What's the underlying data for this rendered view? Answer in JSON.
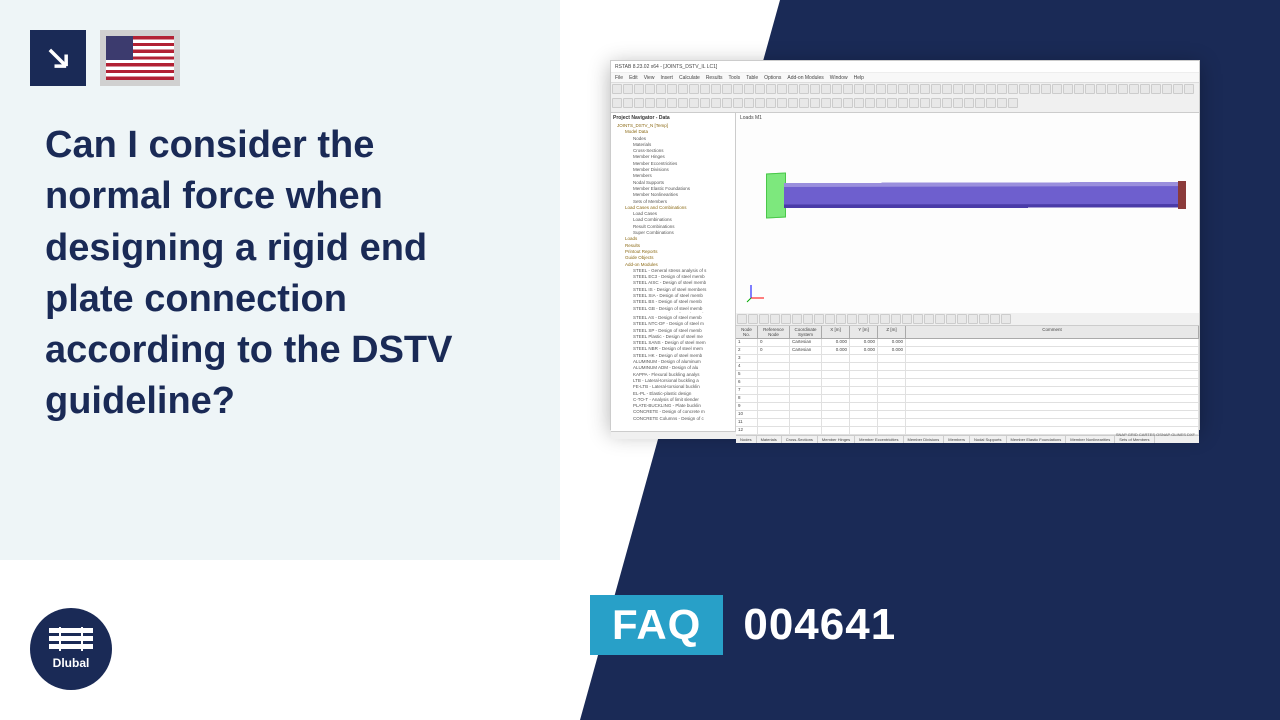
{
  "layout": {
    "canvas_bg": "#ffffff",
    "navy_color": "#1a2a56",
    "left_panel_bg": "#eef5f7",
    "accent_cyan": "#28a0c8"
  },
  "header": {
    "flag": "us"
  },
  "question": "Can I consider the normal force when designing a rigid end plate connection according to the DSTV guideline?",
  "faq": {
    "label": "FAQ",
    "number": "004641"
  },
  "logo": {
    "text": "Dlubal"
  },
  "screenshot": {
    "title": "RSTAB 8.23.02 x64 - [JOINTS_DSTV_IL LC1]",
    "menus": [
      "File",
      "Edit",
      "View",
      "Insert",
      "Calculate",
      "Results",
      "Tools",
      "Table",
      "Options",
      "Add-on Modules",
      "Window",
      "Help"
    ],
    "tree": {
      "root": "JOINTS_DSTV_N [Temp]",
      "section1": "Model Data",
      "items1": [
        "Nodes",
        "Materials",
        "Cross-Sections",
        "Member Hinges",
        "Member Eccentricities",
        "Member Divisions",
        "Members",
        "Nodal Supports",
        "Member Elastic Foundations",
        "Member Nonlinearities",
        "Sets of Members"
      ],
      "section2": "Load Cases and Combinations",
      "items2": [
        "Load Cases",
        "Load Combinations",
        "Result Combinations",
        "Super Combinations"
      ],
      "section3": "Loads",
      "section4": "Results",
      "section5": "Printout Reports",
      "section6": "Guide Objects",
      "section7": "Add-on Modules",
      "modules": [
        "STEEL - General stress analysis of s",
        "STEEL EC3 - Design of steel memb",
        "STEEL AISC - Design of steel memb",
        "STEEL IS - Design of steel members",
        "STEEL SIA - Design of steel memb",
        "STEEL BS - Design of steel memb",
        "STEEL GB - Design of steel memb",
        "STEEL CSA - Design of steel memb",
        "STEEL AS - Design of steel memb",
        "STEEL NTC-DF - Design of steel m",
        "STEEL SP - Design of steel memb",
        "STEEL Plastic - Design of steel me",
        "STEEL SANS - Design of steel mem",
        "STEEL NBR - Design of steel mem",
        "STEEL HK - Design of steel memb",
        "ALUMINUM - Design of aluminum",
        "ALUMINUM ADM - Design of alu",
        "KAPPA - Flexural buckling analys",
        "LTB - Lateral-torsional buckling a",
        "FE-LTB - Lateral-torsional bucklin",
        "EL-PL - Elastic-plastic design",
        "C-TO-T - Analysis of limit slender",
        "PLATE-BUCKLING - Plate bucklin",
        "CONCRETE - Design of concrete m",
        "CONCRETE Columns - Design of c"
      ]
    },
    "viewport": {
      "label": "Loads M1",
      "beam_color": "#6e5fce",
      "support_color": "#7de87d",
      "end_color": "#8b3a3a"
    },
    "table": {
      "headers": {
        "a": "Node No.",
        "b": "Reference Node",
        "c": "Coordinate System",
        "d": "X [m]",
        "e": "Y [m]",
        "f": "Z [m]",
        "g": "Comment"
      },
      "subheader": "Node Coordinates",
      "rows": [
        {
          "no": "1",
          "ref": "0",
          "sys": "Cartesian",
          "x": "0.000",
          "y": "0.000",
          "z": "0.000"
        },
        {
          "no": "2",
          "ref": "0",
          "sys": "Cartesian",
          "x": "0.000",
          "y": "0.000",
          "z": "0.000"
        }
      ],
      "empty_rows": 10
    },
    "tabs": [
      "Nodes",
      "Materials",
      "Cross-Sections",
      "Member Hinges",
      "Member Eccentricities",
      "Member Divisions",
      "Members",
      "Nodal Supports",
      "Member Elastic Foundations",
      "Member Nonlinearities",
      "Sets of Members"
    ],
    "status": "SNAP GRID CARTES OSNAP GLINES DXF"
  }
}
